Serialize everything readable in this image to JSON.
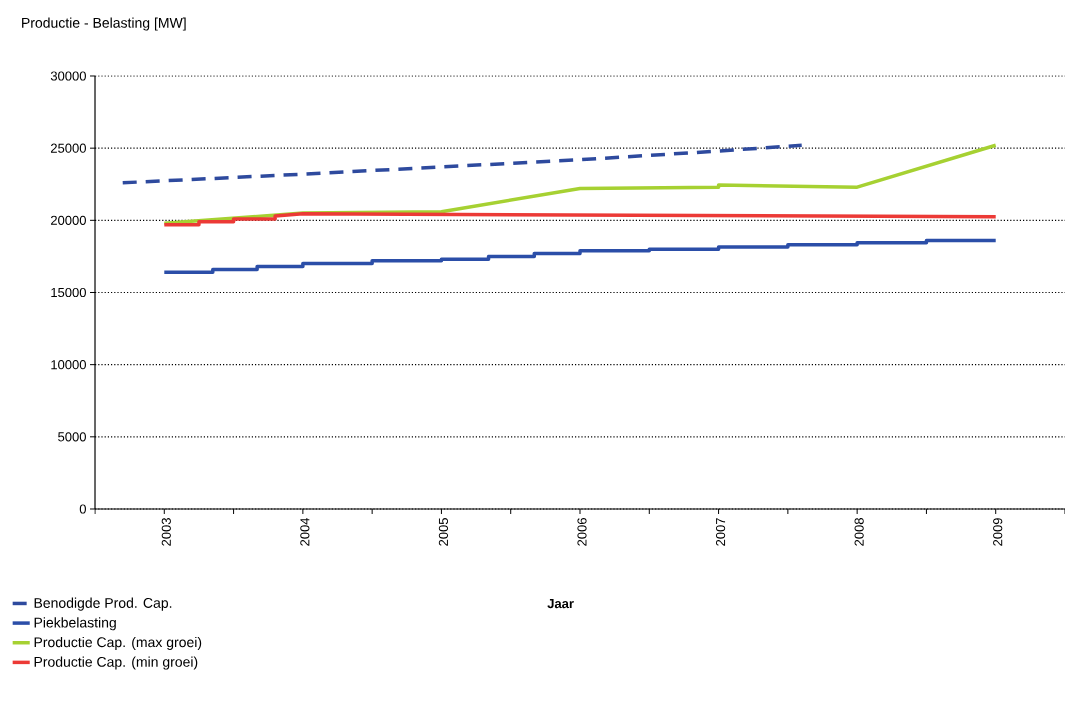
{
  "chart_data": {
    "type": "line",
    "ylabel": "Productie - Belasting [MW]",
    "xlabel": "Jaar",
    "xlim": [
      2002.5,
      2009.5
    ],
    "xticks": [
      2003,
      2004,
      2005,
      2006,
      2007,
      2008,
      2009
    ],
    "ylim": [
      0,
      30000
    ],
    "yticks": [
      0,
      5000,
      10000,
      15000,
      20000,
      25000,
      30000
    ],
    "grid": "y",
    "legend": "bottom left",
    "series": [
      {
        "name": "Benodigde Prod. Cap.",
        "color": "#2e4a9e",
        "line_style": "dashed",
        "x": [
          2002.7,
          2004,
          2005,
          2006,
          2007,
          2007.6
        ],
        "values": [
          22600,
          23200,
          23700,
          24200,
          24800,
          25200
        ]
      },
      {
        "name": "Piekbelasting",
        "type": "step",
        "color": "#2b4ea8",
        "x": [
          2003,
          2003.35,
          2003.67,
          2004,
          2004.5,
          2005,
          2005.34,
          2005.67,
          2006,
          2006.5,
          2007,
          2007.5,
          2008,
          2008.5,
          2009
        ],
        "values": [
          16400,
          16600,
          16800,
          17000,
          17200,
          17300,
          17500,
          17700,
          17900,
          18000,
          18150,
          18300,
          18450,
          18600,
          18600
        ]
      },
      {
        "name": "Productie Cap. (max groei)",
        "color": "#a6d132",
        "x": [
          2003,
          2004,
          2005,
          2006,
          2007,
          2007,
          2008,
          2009
        ],
        "values": [
          19800,
          20500,
          20600,
          22200,
          22300,
          22450,
          22300,
          25200
        ]
      },
      {
        "name": "Productie Cap. (min groei)",
        "color": "#ec3a36",
        "x": [
          2003,
          2003.25,
          2003.25,
          2003.5,
          2003.5,
          2003.8,
          2003.8,
          2004,
          2009
        ],
        "values": [
          19700,
          19700,
          19900,
          19900,
          20100,
          20100,
          20300,
          20450,
          20250
        ]
      }
    ]
  }
}
